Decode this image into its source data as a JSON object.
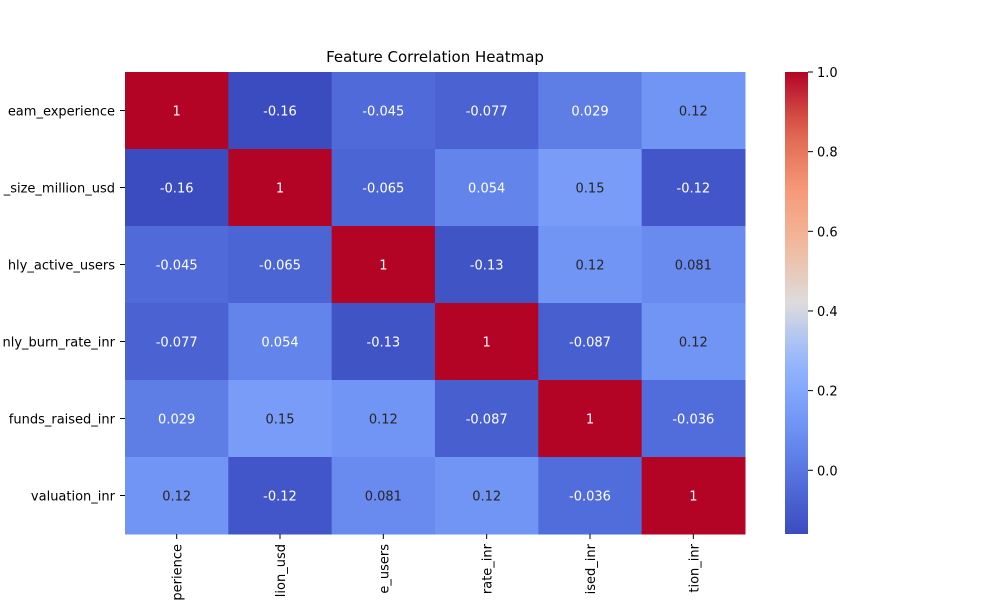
{
  "chart_data": {
    "type": "heatmap",
    "title": "Feature Correlation Heatmap",
    "row_labels": [
      "team_experience",
      "market_size_million_usd",
      "monthly_active_users",
      "monthly_burn_rate_inr",
      "funds_raised_inr",
      "valuation_inr"
    ],
    "visible_row_labels": [
      "eam_experience",
      "_size_million_usd",
      "hly_active_users",
      "nly_burn_rate_inr",
      "funds_raised_inr",
      "valuation_inr"
    ],
    "col_labels": [
      "team_experience",
      "market_size_million_usd",
      "monthly_active_users",
      "monthly_burn_rate_inr",
      "funds_raised_inr",
      "valuation_inr"
    ],
    "visible_col_labels": [
      "perience",
      "lion_usd",
      "e_users",
      "rate_inr",
      "ised_inr",
      "tion_inr"
    ],
    "values": [
      [
        1,
        -0.16,
        -0.045,
        -0.077,
        0.029,
        0.12
      ],
      [
        -0.16,
        1,
        -0.065,
        0.054,
        0.15,
        -0.12
      ],
      [
        -0.045,
        -0.065,
        1,
        -0.13,
        0.12,
        0.081
      ],
      [
        -0.077,
        0.054,
        -0.13,
        1,
        -0.087,
        0.12
      ],
      [
        0.029,
        0.15,
        0.12,
        -0.087,
        1,
        -0.036
      ],
      [
        0.12,
        -0.12,
        0.081,
        0.12,
        -0.036,
        1
      ]
    ],
    "annotations": [
      [
        "1",
        "-0.16",
        "-0.045",
        "-0.077",
        "0.029",
        "0.12"
      ],
      [
        "-0.16",
        "1",
        "-0.065",
        "0.054",
        "0.15",
        "-0.12"
      ],
      [
        "-0.045",
        "-0.065",
        "1",
        "-0.13",
        "0.12",
        "0.081"
      ],
      [
        "-0.077",
        "0.054",
        "-0.13",
        "1",
        "-0.087",
        "0.12"
      ],
      [
        "0.029",
        "0.15",
        "0.12",
        "-0.087",
        "1",
        "-0.036"
      ],
      [
        "0.12",
        "-0.12",
        "0.081",
        "0.12",
        "-0.036",
        "1"
      ]
    ],
    "colormap": "coolwarm",
    "colorbar": {
      "vmin": -0.16,
      "vmax": 1.0,
      "ticks": [
        0.0,
        0.2,
        0.4,
        0.6,
        0.8,
        1.0
      ],
      "tick_labels": [
        "0.0",
        "0.2",
        "0.4",
        "0.6",
        "0.8",
        "1.0"
      ],
      "placement": "right"
    },
    "xlabel": "",
    "ylabel": ""
  }
}
